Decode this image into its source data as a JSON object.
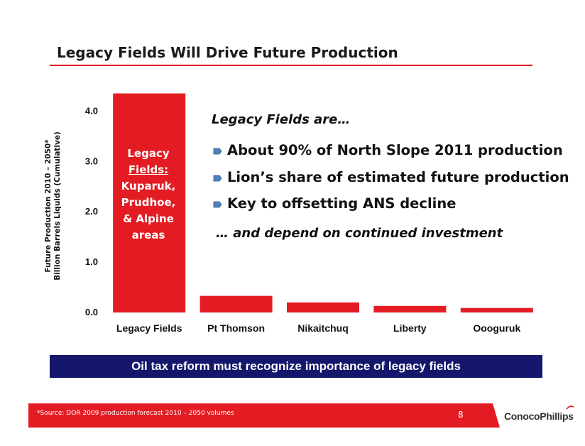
{
  "slide": {
    "title": "Legacy Fields Will Drive Future Production",
    "legacy_heading": "Legacy Fields are…",
    "bullets": [
      "About 90% of North Slope 2011 production",
      "Lion’s share of estimated future production",
      "Key to offsetting ANS decline"
    ],
    "depend_text": "… and depend on continued investment",
    "banner": "Oil tax reform must recognize importance of legacy fields",
    "footnote": "*Source: DOR 2009 production forecast 2010 – 2050 volumes",
    "page_number": "8",
    "logo": "ConocoPhillips"
  },
  "chart_data": {
    "type": "bar",
    "categories": [
      "Legacy Fields",
      "Pt Thomson",
      "Nikaitchuq",
      "Liberty",
      "Oooguruk"
    ],
    "values": [
      4.35,
      0.33,
      0.2,
      0.13,
      0.09
    ],
    "ylabel_line1": "Future Production 2010 – 2050*",
    "ylabel_line2": "Billion Barrels Liquids (Cumulative)",
    "yticks": [
      "0.0",
      "1.0",
      "2.0",
      "3.0",
      "4.0"
    ],
    "ylim": [
      0,
      4.4
    ],
    "grid": false,
    "bar_color": "#e31c23",
    "bar_label_lines": [
      "Legacy",
      "Fields:",
      "Kuparuk,",
      "Prudhoe,",
      "& Alpine",
      "areas"
    ]
  },
  "colors": {
    "accent": "#e31c23",
    "banner": "#14176b",
    "bullet": "#4f81bd"
  }
}
